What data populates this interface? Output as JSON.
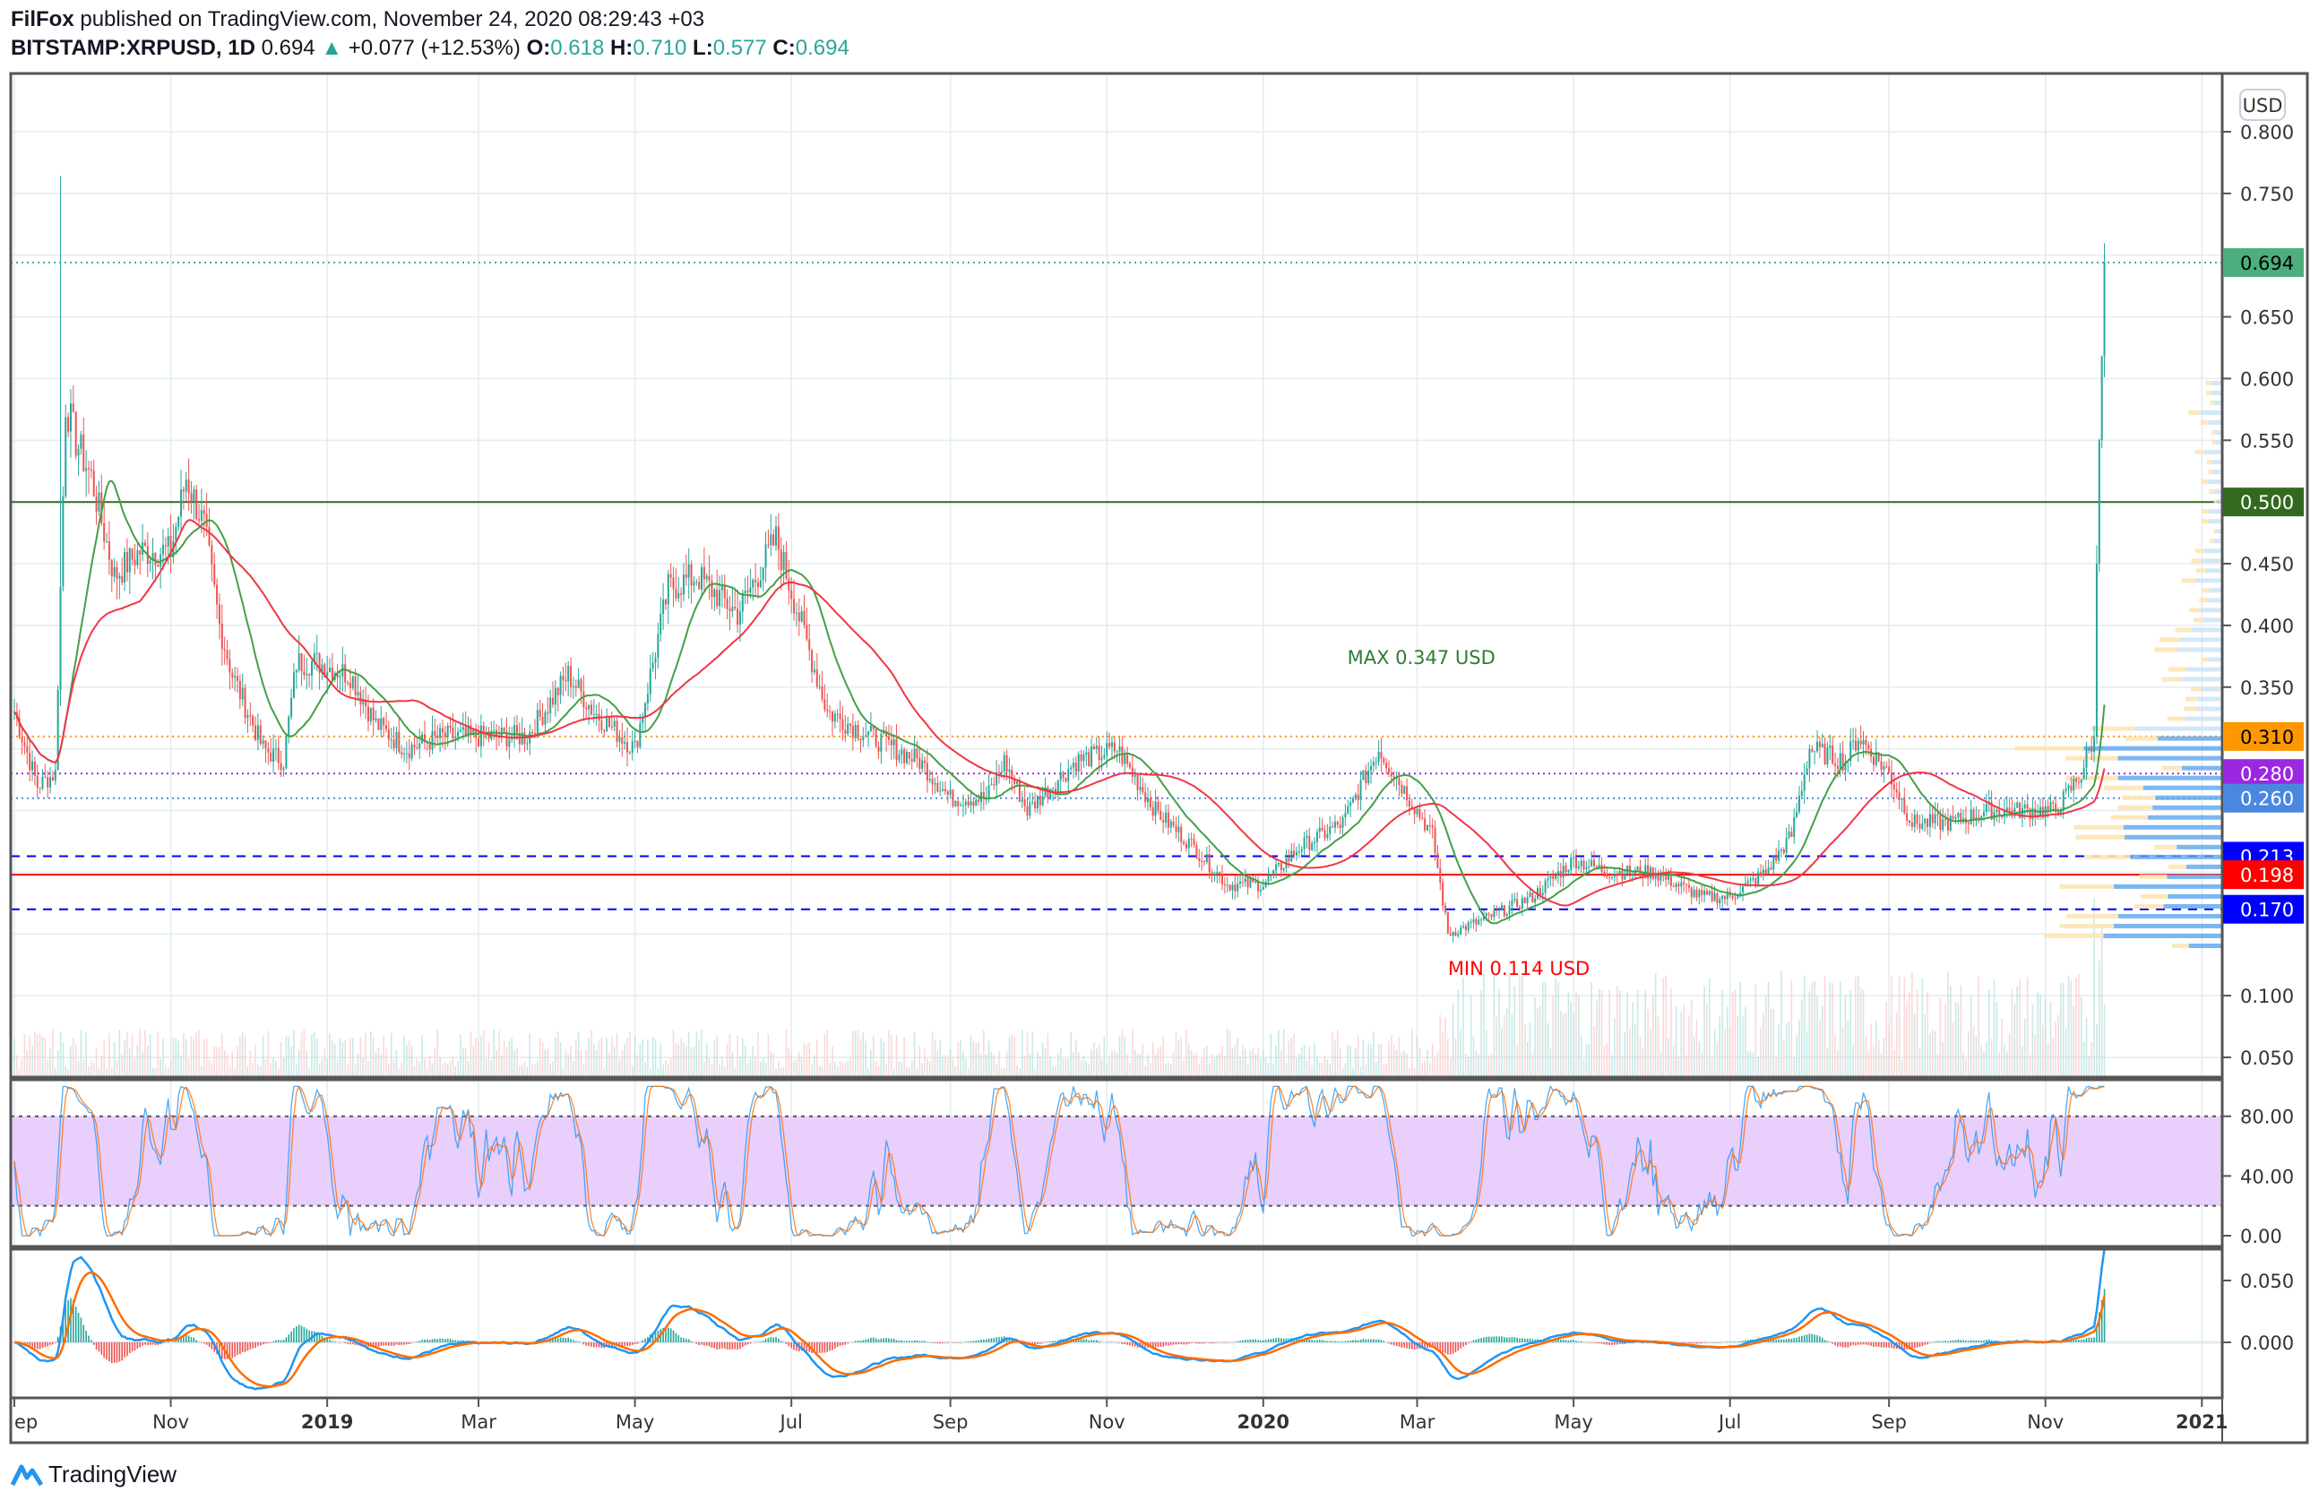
{
  "header": {
    "author": "FilFox",
    "published": "published on TradingView.com, November 24, 2020 08:29:43 +03",
    "symbol": "BITSTAMP:XRPUSD, 1D",
    "last": "0.694",
    "change": "+0.077 (+12.53%)",
    "o_label": "O:",
    "o": "0.618",
    "h_label": "H:",
    "h": "0.710",
    "l_label": "L:",
    "l": "0.577",
    "c_label": "C:",
    "c": "0.694"
  },
  "footer": {
    "brand": "TradingView"
  },
  "colors": {
    "up": "#26a69a",
    "down": "#ef5350",
    "ma_fast": "#43a047",
    "ma_slow": "#f23645"
  },
  "chart_data": {
    "type": "candlestick",
    "currency": "USD",
    "ylim": [
      0.03,
      0.82
    ],
    "y_ticks": [
      "0.800",
      "0.750",
      "0.650",
      "0.600",
      "0.550",
      "0.450",
      "0.400",
      "0.350",
      "0.100",
      "0.050"
    ],
    "x_ticks": [
      {
        "label": "ep",
        "date": "2018-09-01"
      },
      {
        "label": "Nov",
        "date": "2018-11-01"
      },
      {
        "label": "2019",
        "date": "2019-01-01"
      },
      {
        "label": "Mar",
        "date": "2019-03-01"
      },
      {
        "label": "May",
        "date": "2019-05-01"
      },
      {
        "label": "Jul",
        "date": "2019-07-01"
      },
      {
        "label": "Sep",
        "date": "2019-09-01"
      },
      {
        "label": "Nov",
        "date": "2019-11-01"
      },
      {
        "label": "2020",
        "date": "2020-01-01"
      },
      {
        "label": "Mar",
        "date": "2020-03-01"
      },
      {
        "label": "May",
        "date": "2020-05-01"
      },
      {
        "label": "Jul",
        "date": "2020-07-01"
      },
      {
        "label": "Sep",
        "date": "2020-09-01"
      },
      {
        "label": "Nov",
        "date": "2020-11-01"
      },
      {
        "label": "2021",
        "date": "2021-01-01"
      }
    ],
    "close_keypoints": [
      [
        "2018-09-01",
        0.33
      ],
      [
        "2018-09-10",
        0.27
      ],
      [
        "2018-09-17",
        0.28
      ],
      [
        "2018-09-21",
        0.58
      ],
      [
        "2018-09-25",
        0.55
      ],
      [
        "2018-10-01",
        0.52
      ],
      [
        "2018-10-10",
        0.44
      ],
      [
        "2018-10-20",
        0.46
      ],
      [
        "2018-11-01",
        0.46
      ],
      [
        "2018-11-07",
        0.52
      ],
      [
        "2018-11-14",
        0.48
      ],
      [
        "2018-11-20",
        0.4
      ],
      [
        "2018-11-25",
        0.36
      ],
      [
        "2018-12-07",
        0.3
      ],
      [
        "2018-12-15",
        0.29
      ],
      [
        "2018-12-20",
        0.37
      ],
      [
        "2018-12-28",
        0.37
      ],
      [
        "2019-01-10",
        0.36
      ],
      [
        "2019-01-20",
        0.32
      ],
      [
        "2019-02-01",
        0.3
      ],
      [
        "2019-02-15",
        0.31
      ],
      [
        "2019-03-01",
        0.31
      ],
      [
        "2019-03-20",
        0.31
      ],
      [
        "2019-04-05",
        0.36
      ],
      [
        "2019-04-15",
        0.33
      ],
      [
        "2019-05-01",
        0.3
      ],
      [
        "2019-05-14",
        0.43
      ],
      [
        "2019-05-25",
        0.44
      ],
      [
        "2019-06-10",
        0.41
      ],
      [
        "2019-06-25",
        0.47
      ],
      [
        "2019-07-05",
        0.4
      ],
      [
        "2019-07-15",
        0.33
      ],
      [
        "2019-08-01",
        0.31
      ],
      [
        "2019-08-20",
        0.29
      ],
      [
        "2019-09-01",
        0.26
      ],
      [
        "2019-09-15",
        0.26
      ],
      [
        "2019-09-22",
        0.29
      ],
      [
        "2019-10-01",
        0.25
      ],
      [
        "2019-10-20",
        0.29
      ],
      [
        "2019-11-05",
        0.3
      ],
      [
        "2019-11-20",
        0.25
      ],
      [
        "2019-12-05",
        0.22
      ],
      [
        "2019-12-18",
        0.19
      ],
      [
        "2020-01-01",
        0.19
      ],
      [
        "2020-01-15",
        0.22
      ],
      [
        "2020-02-01",
        0.24
      ],
      [
        "2020-02-15",
        0.3
      ],
      [
        "2020-02-24",
        0.27
      ],
      [
        "2020-03-07",
        0.23
      ],
      [
        "2020-03-13",
        0.15
      ],
      [
        "2020-03-25",
        0.16
      ],
      [
        "2020-04-15",
        0.18
      ],
      [
        "2020-05-01",
        0.21
      ],
      [
        "2020-05-15",
        0.2
      ],
      [
        "2020-06-01",
        0.2
      ],
      [
        "2020-06-20",
        0.18
      ],
      [
        "2020-07-01",
        0.18
      ],
      [
        "2020-07-15",
        0.2
      ],
      [
        "2020-07-25",
        0.23
      ],
      [
        "2020-08-01",
        0.3
      ],
      [
        "2020-08-15",
        0.29
      ],
      [
        "2020-08-20",
        0.31
      ],
      [
        "2020-09-01",
        0.28
      ],
      [
        "2020-09-10",
        0.24
      ],
      [
        "2020-09-25",
        0.24
      ],
      [
        "2020-10-10",
        0.25
      ],
      [
        "2020-10-25",
        0.25
      ],
      [
        "2020-11-05",
        0.25
      ],
      [
        "2020-11-15",
        0.28
      ],
      [
        "2020-11-20",
        0.31
      ],
      [
        "2020-11-21",
        0.45
      ],
      [
        "2020-11-22",
        0.55
      ],
      [
        "2020-11-23",
        0.618
      ],
      [
        "2020-11-24",
        0.694
      ]
    ],
    "levels": [
      {
        "price": 0.694,
        "label": "0.694",
        "style": "dotted",
        "color": "#4caf7d",
        "text": "#000"
      },
      {
        "price": 0.5,
        "label": "0.500",
        "style": "solid",
        "color": "#33691e",
        "text": "#fff"
      },
      {
        "price": 0.31,
        "label": "0.310",
        "style": "dotted",
        "color": "#ff9800",
        "text": "#000"
      },
      {
        "price": 0.28,
        "label": "0.280",
        "style": "dotted",
        "color": "#9c27e0",
        "text": "#fff"
      },
      {
        "price": 0.26,
        "label": "0.260",
        "style": "dotted",
        "color": "#4a88e0",
        "text": "#fff"
      },
      {
        "price": 0.213,
        "label": "0.213",
        "style": "dashed",
        "color": "#0000ff",
        "text": "#fff"
      },
      {
        "price": 0.198,
        "label": "0.198",
        "style": "solid",
        "color": "#ff0000",
        "text": "#fff"
      },
      {
        "price": 0.17,
        "label": "0.170",
        "style": "dashed",
        "color": "#0000ff",
        "text": "#fff"
      }
    ],
    "annotations": [
      {
        "text": "MAX 0.347 USD",
        "date": "2020-02-15",
        "price": 0.347,
        "color": "#2e7d32"
      },
      {
        "text": "MIN 0.114 USD",
        "date": "2020-03-13",
        "price": 0.114,
        "color": "#ff0000"
      }
    ],
    "stoch_rsi": {
      "ticks": [
        "80.00",
        "40.00",
        "0.00"
      ],
      "upper": 80,
      "lower": 20
    },
    "macd": {
      "ticks": [
        "0.050",
        "0.000"
      ]
    }
  }
}
